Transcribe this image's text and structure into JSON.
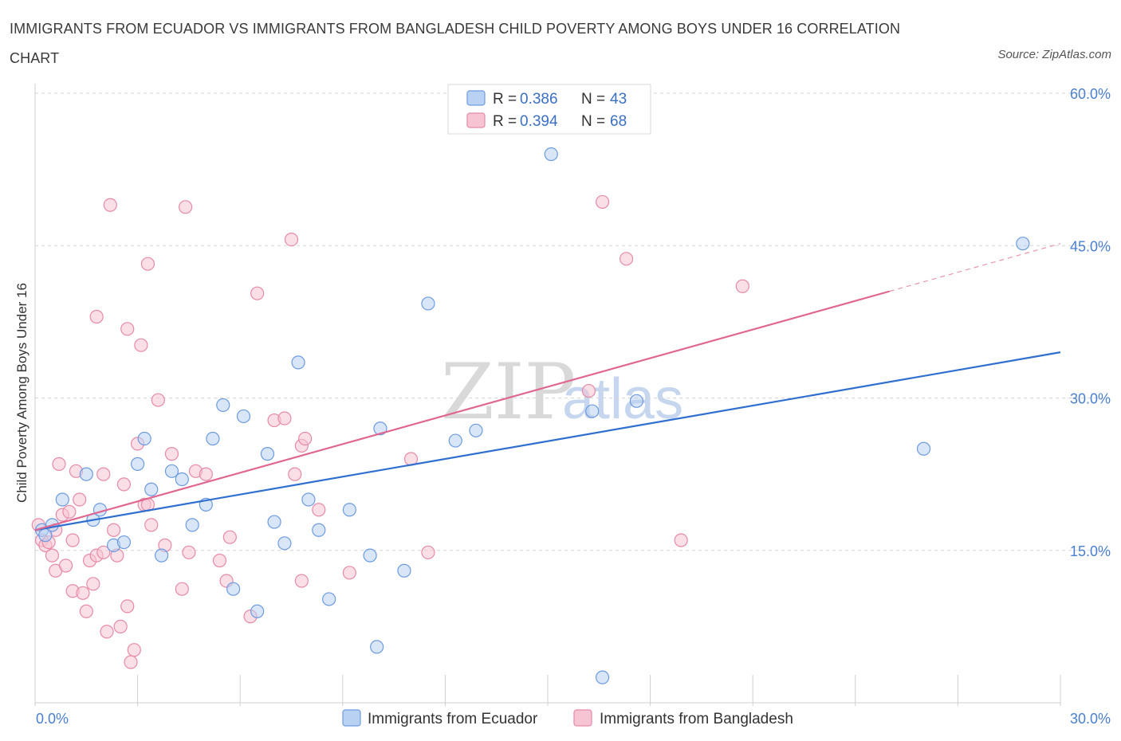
{
  "title": "IMMIGRANTS FROM ECUADOR VS IMMIGRANTS FROM BANGLADESH CHILD POVERTY AMONG BOYS UNDER 16 CORRELATION CHART",
  "source": "Source: ZipAtlas.com",
  "watermark": {
    "zip": "ZIP",
    "atlas": "atlas"
  },
  "colors": {
    "ecuador_fill": "#b9d1f3",
    "ecuador_stroke": "#6d9be0",
    "ecuador_line": "#2f6fd0",
    "bangladesh_fill": "#f7c4d3",
    "bangladesh_stroke": "#e68aa8",
    "bangladesh_line": "#e06690",
    "grid": "#d6d6d6",
    "tick_label": "#4a7fd0"
  },
  "legend": {
    "rows": [
      {
        "r_label": "R = ",
        "r_value": "0.386",
        "n_label": "N = ",
        "n_value": "43"
      },
      {
        "r_label": "R = ",
        "r_value": "0.394",
        "n_label": "N = ",
        "n_value": "68"
      }
    ]
  },
  "chart_data": {
    "type": "scatter",
    "title": "IMMIGRANTS FROM ECUADOR VS IMMIGRANTS FROM BANGLADESH CHILD POVERTY AMONG BOYS UNDER 16 CORRELATION CHART",
    "xlabel": "",
    "ylabel": "Child Poverty Among Boys Under 16",
    "xlim": [
      0,
      30
    ],
    "ylim": [
      0,
      60
    ],
    "x_tick_labels": [
      "0.0%",
      "30.0%"
    ],
    "y_ticks": [
      15,
      30,
      45,
      60
    ],
    "y_tick_labels": [
      "15.0%",
      "30.0%",
      "45.0%",
      "60.0%"
    ],
    "grid": true,
    "legend_position": "top-center",
    "series": [
      {
        "name": "Immigrants from Ecuador",
        "r": 0.386,
        "n": 43,
        "trend": {
          "x": [
            0,
            30
          ],
          "y": [
            17.0,
            34.5
          ],
          "dashed_from": null
        },
        "points": [
          [
            0.2,
            17.0
          ],
          [
            0.3,
            16.5
          ],
          [
            0.5,
            17.5
          ],
          [
            0.8,
            20.0
          ],
          [
            1.5,
            22.5
          ],
          [
            1.7,
            18.0
          ],
          [
            1.9,
            19.0
          ],
          [
            2.3,
            15.5
          ],
          [
            2.6,
            15.8
          ],
          [
            3.0,
            23.5
          ],
          [
            3.2,
            26.0
          ],
          [
            3.4,
            21.0
          ],
          [
            3.7,
            14.5
          ],
          [
            4.0,
            22.8
          ],
          [
            4.3,
            22.0
          ],
          [
            4.6,
            17.5
          ],
          [
            5.0,
            19.5
          ],
          [
            5.2,
            26.0
          ],
          [
            5.5,
            29.3
          ],
          [
            5.8,
            11.2
          ],
          [
            6.1,
            28.2
          ],
          [
            6.5,
            9.0
          ],
          [
            6.8,
            24.5
          ],
          [
            7.0,
            17.8
          ],
          [
            7.3,
            15.7
          ],
          [
            7.7,
            33.5
          ],
          [
            8.0,
            20.0
          ],
          [
            8.3,
            17.0
          ],
          [
            8.6,
            10.2
          ],
          [
            9.2,
            19.0
          ],
          [
            9.8,
            14.5
          ],
          [
            10.1,
            27.0
          ],
          [
            10.0,
            5.5
          ],
          [
            10.8,
            13.0
          ],
          [
            11.5,
            39.3
          ],
          [
            12.3,
            25.8
          ],
          [
            12.9,
            26.8
          ],
          [
            15.1,
            54.0
          ],
          [
            16.3,
            28.7
          ],
          [
            16.6,
            2.5
          ],
          [
            17.6,
            29.7
          ],
          [
            26.0,
            25.0
          ],
          [
            28.9,
            45.2
          ]
        ]
      },
      {
        "name": "Immigrants from Bangladesh",
        "r": 0.394,
        "n": 68,
        "trend": {
          "x": [
            0,
            25.0,
            30
          ],
          "y": [
            17.0,
            40.5,
            45.2
          ],
          "dashed_from": 25.0
        },
        "points": [
          [
            0.1,
            17.5
          ],
          [
            0.2,
            16.0
          ],
          [
            0.3,
            15.5
          ],
          [
            0.4,
            15.8
          ],
          [
            0.5,
            14.5
          ],
          [
            0.6,
            17.0
          ],
          [
            0.6,
            13.0
          ],
          [
            0.7,
            23.5
          ],
          [
            0.8,
            18.5
          ],
          [
            0.9,
            13.5
          ],
          [
            1.0,
            18.8
          ],
          [
            1.1,
            16.0
          ],
          [
            1.1,
            11.0
          ],
          [
            1.2,
            22.8
          ],
          [
            1.3,
            20.0
          ],
          [
            1.4,
            10.8
          ],
          [
            1.5,
            9.0
          ],
          [
            1.6,
            14.0
          ],
          [
            1.7,
            11.7
          ],
          [
            1.8,
            14.5
          ],
          [
            1.8,
            38.0
          ],
          [
            2.0,
            14.8
          ],
          [
            2.0,
            22.5
          ],
          [
            2.1,
            7.0
          ],
          [
            2.2,
            49.0
          ],
          [
            2.3,
            17.0
          ],
          [
            2.4,
            14.5
          ],
          [
            2.5,
            7.5
          ],
          [
            2.6,
            21.5
          ],
          [
            2.7,
            9.5
          ],
          [
            2.7,
            36.8
          ],
          [
            2.8,
            4.0
          ],
          [
            2.9,
            5.2
          ],
          [
            3.0,
            25.5
          ],
          [
            3.1,
            35.2
          ],
          [
            3.2,
            19.5
          ],
          [
            3.3,
            19.5
          ],
          [
            3.3,
            43.2
          ],
          [
            3.4,
            17.5
          ],
          [
            3.6,
            29.8
          ],
          [
            3.8,
            15.5
          ],
          [
            4.0,
            24.5
          ],
          [
            4.3,
            11.2
          ],
          [
            4.4,
            48.8
          ],
          [
            4.5,
            14.8
          ],
          [
            4.7,
            22.8
          ],
          [
            5.0,
            22.5
          ],
          [
            5.4,
            14.0
          ],
          [
            5.6,
            12.0
          ],
          [
            5.7,
            16.3
          ],
          [
            6.3,
            8.5
          ],
          [
            6.5,
            40.3
          ],
          [
            7.0,
            27.8
          ],
          [
            7.3,
            28.0
          ],
          [
            7.5,
            45.6
          ],
          [
            7.6,
            22.5
          ],
          [
            7.8,
            25.3
          ],
          [
            7.8,
            12.0
          ],
          [
            7.9,
            26.0
          ],
          [
            8.3,
            19.0
          ],
          [
            9.2,
            12.8
          ],
          [
            11.0,
            24.0
          ],
          [
            11.5,
            14.8
          ],
          [
            16.2,
            30.7
          ],
          [
            16.6,
            49.3
          ],
          [
            17.3,
            43.7
          ],
          [
            18.9,
            16.0
          ],
          [
            20.7,
            41.0
          ]
        ]
      }
    ]
  }
}
